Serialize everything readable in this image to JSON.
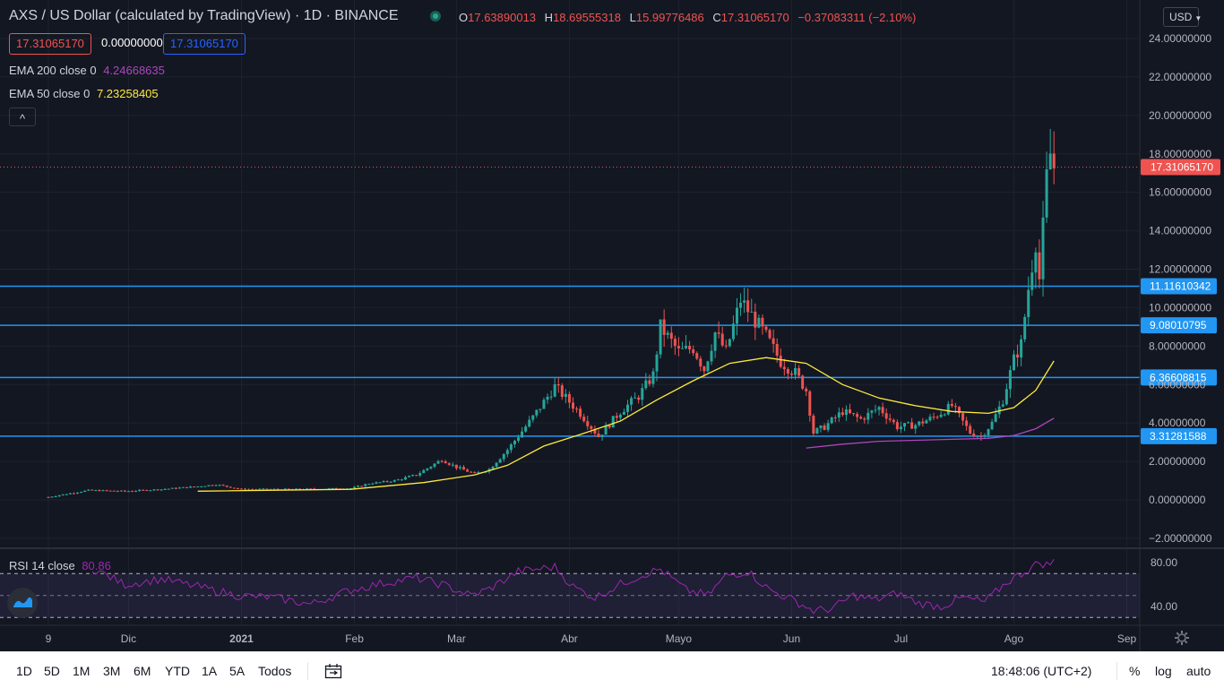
{
  "header": {
    "title": "AXS / US Dollar (calculated by TradingView) · 1D · BINANCE",
    "ohlc": {
      "o_label": "O",
      "o": "17.63890013",
      "h_label": "H",
      "h": "18.69555318",
      "l_label": "L",
      "l": "15.99776486",
      "c_label": "C",
      "c": "17.31065170",
      "change": "−0.37083311 (−2.10%)"
    },
    "bid": "17.31065170",
    "spread": "0.00000000",
    "ask": "17.31065170",
    "currency": "USD",
    "collapse_symbol": "^"
  },
  "indicators": {
    "ema200": {
      "label": "EMA 200 close 0",
      "value": "4.24668635",
      "color": "#ab47bc"
    },
    "ema50": {
      "label": "EMA 50 close 0",
      "value": "7.23258405",
      "color": "#ffeb3b"
    },
    "rsi": {
      "label": "RSI 14 close",
      "value": "80.86",
      "color": "#9c27b0"
    }
  },
  "colors": {
    "up": "#26a69a",
    "down": "#ef5350",
    "hline": "#2196f3",
    "bg": "#131722"
  },
  "chart_data": {
    "type": "candlestick",
    "y_ticks": [
      "24.00000000",
      "22.00000000",
      "20.00000000",
      "18.00000000",
      "16.00000000",
      "14.00000000",
      "12.00000000",
      "10.00000000",
      "8.00000000",
      "6.00000000",
      "4.00000000",
      "2.00000000",
      "0.00000000",
      "−2.00000000"
    ],
    "ylim": [
      -2.0,
      24.0
    ],
    "x_ticks": [
      "9",
      "Dic",
      "2021",
      "Feb",
      "Mar",
      "Abr",
      "Mayo",
      "Jun",
      "Jul",
      "Ago",
      "Sep"
    ],
    "last_price": "17.31065170",
    "horizontal_lines": [
      {
        "value": 11.1161,
        "label": "11.11610342"
      },
      {
        "value": 9.0801,
        "label": "9.08010795"
      },
      {
        "value": 6.3661,
        "label": "6.36608815"
      },
      {
        "value": 3.3128,
        "label": "3.31281588"
      }
    ],
    "price_path": [
      [
        "2020-11-09",
        0.15
      ],
      [
        "2020-11-20",
        0.5
      ],
      [
        "2020-11-30",
        0.45
      ],
      [
        "2020-12-10",
        0.55
      ],
      [
        "2020-12-20",
        0.7
      ],
      [
        "2020-12-25",
        0.8
      ],
      [
        "2021-01-01",
        0.55
      ],
      [
        "2021-01-15",
        0.55
      ],
      [
        "2021-01-31",
        0.6
      ],
      [
        "2021-02-05",
        0.85
      ],
      [
        "2021-02-12",
        1.0
      ],
      [
        "2021-02-18",
        1.3
      ],
      [
        "2021-02-25",
        2.1
      ],
      [
        "2021-03-01",
        1.7
      ],
      [
        "2021-03-06",
        1.35
      ],
      [
        "2021-03-10",
        1.6
      ],
      [
        "2021-03-15",
        2.6
      ],
      [
        "2021-03-22",
        4.3
      ],
      [
        "2021-03-28",
        5.9
      ],
      [
        "2021-04-04",
        4.5
      ],
      [
        "2021-04-09",
        3.3
      ],
      [
        "2021-04-15",
        4.6
      ],
      [
        "2021-04-20",
        5.4
      ],
      [
        "2021-04-24",
        6.5
      ],
      [
        "2021-04-26",
        9.0
      ],
      [
        "2021-05-01",
        7.7
      ],
      [
        "2021-05-05",
        7.9
      ],
      [
        "2021-05-08",
        6.8
      ],
      [
        "2021-05-11",
        8.7
      ],
      [
        "2021-05-14",
        7.7
      ],
      [
        "2021-05-18",
        10.4
      ],
      [
        "2021-05-21",
        9.6
      ],
      [
        "2021-05-25",
        8.5
      ],
      [
        "2021-05-29",
        7.2
      ],
      [
        "2021-06-02",
        6.6
      ],
      [
        "2021-06-05",
        5.7
      ],
      [
        "2021-06-07",
        3.5
      ],
      [
        "2021-06-10",
        3.8
      ],
      [
        "2021-06-15",
        4.6
      ],
      [
        "2021-06-20",
        4.2
      ],
      [
        "2021-06-25",
        4.8
      ],
      [
        "2021-06-30",
        3.8
      ],
      [
        "2021-07-05",
        3.9
      ],
      [
        "2021-07-10",
        4.3
      ],
      [
        "2021-07-15",
        4.9
      ],
      [
        "2021-07-20",
        3.5
      ],
      [
        "2021-07-23",
        3.3
      ],
      [
        "2021-07-26",
        4.0
      ],
      [
        "2021-07-29",
        5.2
      ],
      [
        "2021-08-01",
        7.3
      ],
      [
        "2021-08-03",
        8.1
      ],
      [
        "2021-08-05",
        11.0
      ],
      [
        "2021-08-07",
        13.5
      ],
      [
        "2021-08-08",
        11.5
      ],
      [
        "2021-08-10",
        16.7
      ],
      [
        "2021-08-11",
        18.0
      ],
      [
        "2021-08-12",
        17.31
      ]
    ],
    "ema50": [
      [
        "2020-12-20",
        0.45
      ],
      [
        "2021-01-31",
        0.55
      ],
      [
        "2021-02-20",
        0.9
      ],
      [
        "2021-03-06",
        1.3
      ],
      [
        "2021-03-15",
        1.8
      ],
      [
        "2021-03-25",
        2.8
      ],
      [
        "2021-04-04",
        3.4
      ],
      [
        "2021-04-15",
        4.1
      ],
      [
        "2021-04-25",
        5.2
      ],
      [
        "2021-05-05",
        6.2
      ],
      [
        "2021-05-15",
        7.1
      ],
      [
        "2021-05-25",
        7.4
      ],
      [
        "2021-06-05",
        7.1
      ],
      [
        "2021-06-15",
        6.0
      ],
      [
        "2021-06-25",
        5.3
      ],
      [
        "2021-07-05",
        4.9
      ],
      [
        "2021-07-15",
        4.6
      ],
      [
        "2021-07-25",
        4.5
      ],
      [
        "2021-08-01",
        4.8
      ],
      [
        "2021-08-07",
        5.7
      ],
      [
        "2021-08-12",
        7.23
      ]
    ],
    "ema200": [
      [
        "2021-06-05",
        2.7
      ],
      [
        "2021-06-15",
        2.9
      ],
      [
        "2021-06-25",
        3.05
      ],
      [
        "2021-07-05",
        3.1
      ],
      [
        "2021-07-15",
        3.15
      ],
      [
        "2021-07-25",
        3.2
      ],
      [
        "2021-08-01",
        3.35
      ],
      [
        "2021-08-07",
        3.7
      ],
      [
        "2021-08-12",
        4.25
      ]
    ],
    "rsi": {
      "y_ticks": [
        "80.00",
        "40.00"
      ],
      "ylim": [
        32,
        84
      ],
      "bands": [
        70,
        50,
        30
      ],
      "values": [
        [
          "2020-11-21",
          75
        ],
        [
          "2020-11-30",
          60
        ],
        [
          "2020-12-10",
          65
        ],
        [
          "2020-12-20",
          58
        ],
        [
          "2020-12-31",
          50
        ],
        [
          "2021-01-10",
          48
        ],
        [
          "2021-01-20",
          42
        ],
        [
          "2021-01-31",
          55
        ],
        [
          "2021-02-10",
          62
        ],
        [
          "2021-02-18",
          66
        ],
        [
          "2021-02-25",
          60
        ],
        [
          "2021-03-05",
          50
        ],
        [
          "2021-03-10",
          56
        ],
        [
          "2021-03-18",
          72
        ],
        [
          "2021-03-28",
          76
        ],
        [
          "2021-04-02",
          58
        ],
        [
          "2021-04-08",
          48
        ],
        [
          "2021-04-16",
          62
        ],
        [
          "2021-04-22",
          70
        ],
        [
          "2021-04-26",
          74
        ],
        [
          "2021-05-03",
          55
        ],
        [
          "2021-05-09",
          50
        ],
        [
          "2021-05-14",
          68
        ],
        [
          "2021-05-20",
          72
        ],
        [
          "2021-05-26",
          55
        ],
        [
          "2021-06-02",
          45
        ],
        [
          "2021-06-07",
          36
        ],
        [
          "2021-06-12",
          38
        ],
        [
          "2021-06-18",
          50
        ],
        [
          "2021-06-24",
          46
        ],
        [
          "2021-06-30",
          52
        ],
        [
          "2021-07-06",
          43
        ],
        [
          "2021-07-12",
          40
        ],
        [
          "2021-07-18",
          48
        ],
        [
          "2021-07-24",
          44
        ],
        [
          "2021-07-30",
          62
        ],
        [
          "2021-08-04",
          72
        ],
        [
          "2021-08-08",
          80
        ],
        [
          "2021-08-10",
          78
        ],
        [
          "2021-08-12",
          80.86
        ]
      ]
    }
  },
  "bottom": {
    "timeframes": [
      "1D",
      "5D",
      "1M",
      "3M",
      "6M",
      "YTD",
      "1A",
      "5A",
      "Todos"
    ],
    "clock": "18:48:06 (UTC+2)",
    "pct": "%",
    "log": "log",
    "auto": "auto"
  }
}
